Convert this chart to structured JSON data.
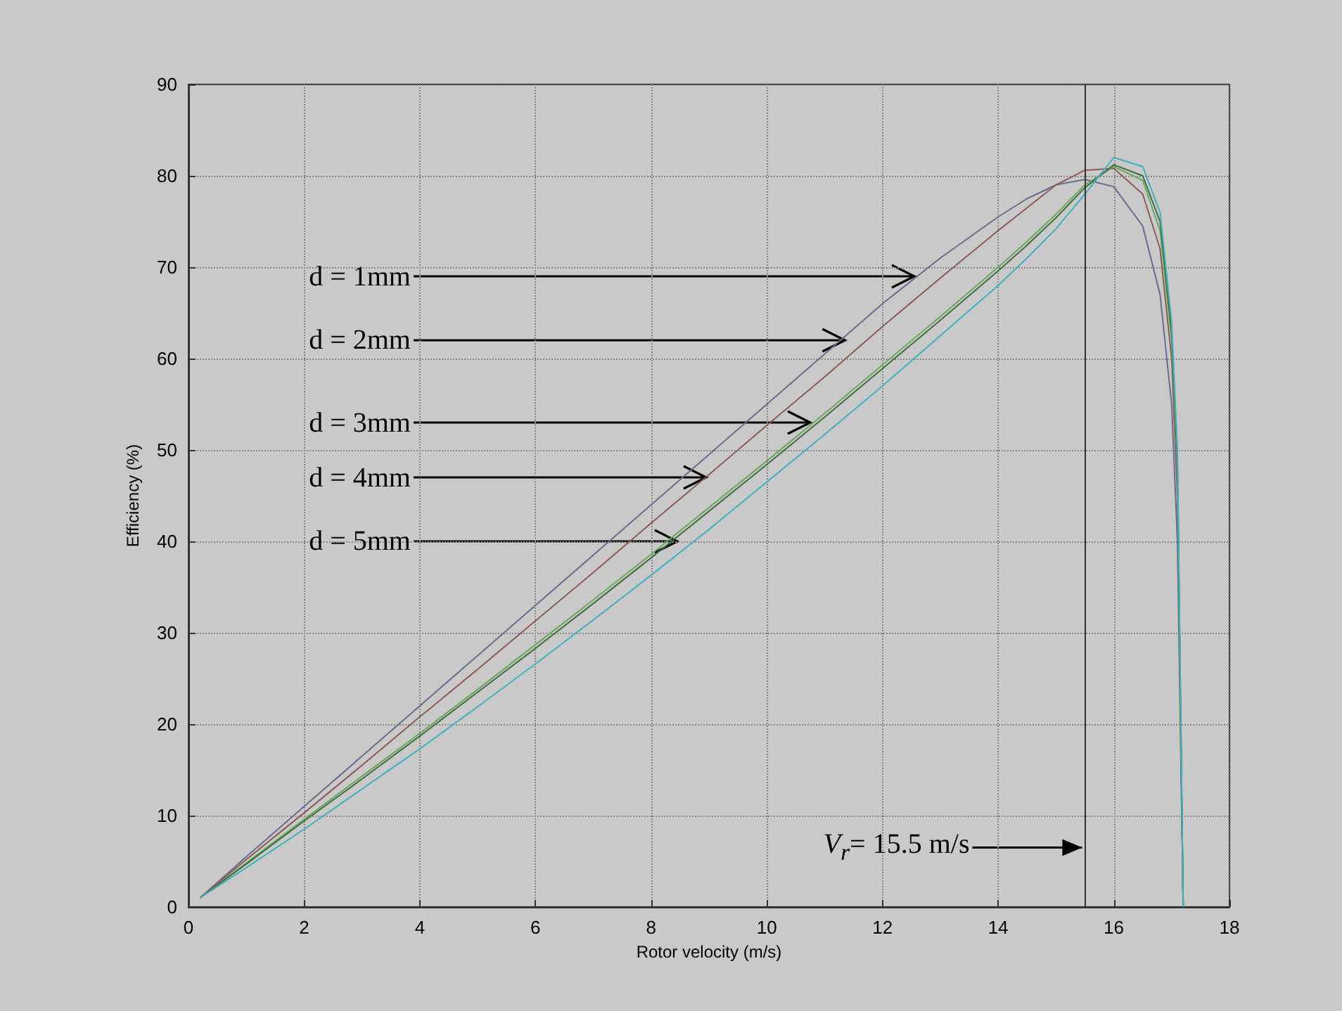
{
  "chart_data": {
    "type": "line",
    "xlabel": "Rotor velocity (m/s)",
    "ylabel": "Efficiency (%)",
    "xlim": [
      0,
      18
    ],
    "xticks": [
      0,
      2,
      4,
      6,
      8,
      10,
      12,
      14,
      16,
      18
    ],
    "ylim": [
      0,
      90
    ],
    "yticks": [
      0,
      10,
      20,
      30,
      40,
      50,
      60,
      70,
      80,
      90
    ],
    "grid": true,
    "line_style": "solid",
    "marker": "none",
    "x": [
      0.2,
      1,
      2,
      3,
      4,
      5,
      6,
      7,
      8,
      9,
      10,
      11,
      12,
      13,
      14,
      14.5,
      15,
      15.5,
      16,
      16.5,
      16.8,
      17,
      17.1,
      17.2
    ],
    "series": [
      {
        "color": "#6b6b8c",
        "values": [
          1,
          5.5,
          11,
          16.5,
          22,
          27.5,
          33,
          38.5,
          44,
          49.5,
          55,
          60.5,
          66,
          71,
          75.5,
          77.5,
          79,
          79.6,
          78.8,
          74.5,
          67,
          55,
          40,
          0
        ]
      },
      {
        "color": "#8c5a5a",
        "values": [
          1,
          5.2,
          10.3,
          15.5,
          20.8,
          26,
          31.3,
          36.6,
          42,
          47.3,
          52.7,
          58,
          63.5,
          68.8,
          74,
          76.5,
          79,
          80.6,
          80.8,
          78,
          72,
          60,
          45,
          0
        ]
      },
      {
        "color": "#6aa85a",
        "values": [
          1,
          4.8,
          9.6,
          14.3,
          19,
          23.8,
          28.7,
          33.6,
          38.6,
          43.7,
          48.8,
          54,
          59.3,
          64.6,
          70,
          72.8,
          75.8,
          79,
          81,
          79.5,
          74,
          62,
          48,
          0
        ]
      },
      {
        "color": "#3f6f3f",
        "values": [
          1,
          4.7,
          9.4,
          14,
          18.7,
          23.5,
          28.3,
          33.2,
          38.2,
          43.3,
          48.4,
          53.6,
          58.9,
          64.2,
          69.6,
          72.4,
          75.4,
          78.7,
          81.2,
          80,
          75,
          63,
          49,
          0
        ]
      },
      {
        "color": "#3fb0c0",
        "values": [
          1,
          4.3,
          8.5,
          12.9,
          17.3,
          21.9,
          26.6,
          31.4,
          36.3,
          41.3,
          46.5,
          51.7,
          57,
          62.5,
          68,
          71,
          74.2,
          78,
          82,
          81,
          76,
          64,
          50,
          0
        ]
      }
    ],
    "ref_lines": [
      {
        "axis": "x",
        "value": 15.5,
        "color": "#333333"
      }
    ],
    "annotations": [
      {
        "text": "d = 1mm",
        "x": 12.6,
        "y": 69
      },
      {
        "text": "d = 2mm",
        "x": 11.4,
        "y": 62
      },
      {
        "text": "d = 3mm",
        "x": 10.8,
        "y": 53
      },
      {
        "text": "d = 4mm",
        "x": 9,
        "y": 47
      },
      {
        "text": "d = 5mm",
        "x": 8.5,
        "y": 40
      },
      {
        "text": "V$_{r}$= 15.5 m/s",
        "x": 15.5,
        "y": 6.5
      }
    ]
  }
}
